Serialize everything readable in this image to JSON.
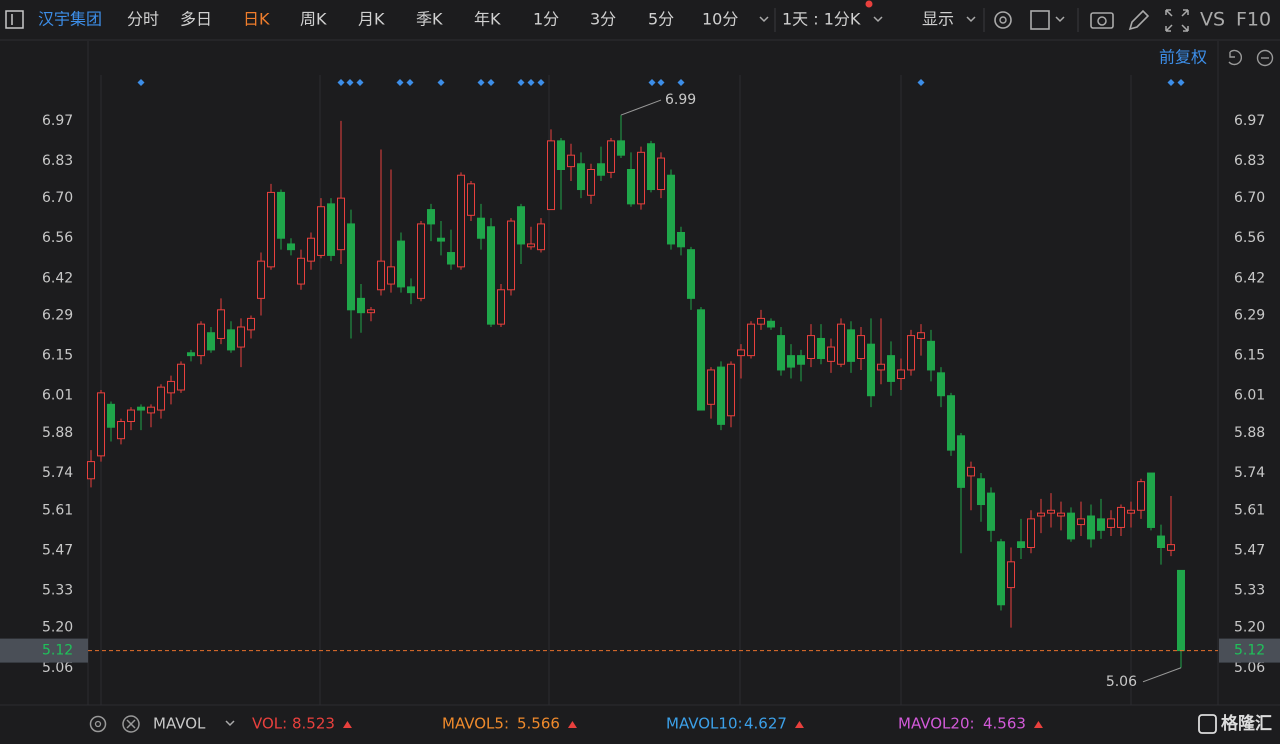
{
  "toolbar": {
    "stock_name": "汉宇集团",
    "periods": [
      "分时",
      "多日",
      "日K",
      "周K",
      "月K",
      "季K",
      "年K",
      "1分",
      "3分",
      "5分",
      "10分"
    ],
    "active_period": "日K",
    "interval": "1天 : 1分K",
    "display": "显示",
    "vs": "VS",
    "f10": "F10"
  },
  "chart_data": {
    "type": "candlestick",
    "adjust": "前复权",
    "up_color": "#e8403d",
    "down_color": "#1fa64a",
    "ylim": [
      4.93,
      7.13
    ],
    "yticks": [
      6.97,
      6.83,
      {
        "value": 6.7,
        "label": "6.70"
      },
      6.56,
      6.42,
      6.29,
      6.15,
      6.01,
      5.88,
      5.74,
      5.61,
      5.47,
      5.33,
      {
        "value": 5.2,
        "label": "5.20"
      },
      5.06
    ],
    "ohlc": [
      [
        5.72,
        5.82,
        5.69,
        5.78
      ],
      [
        5.8,
        6.03,
        5.78,
        6.02
      ],
      [
        5.98,
        5.99,
        5.85,
        5.9
      ],
      [
        5.86,
        5.93,
        5.84,
        5.92
      ],
      [
        5.92,
        5.97,
        5.89,
        5.96
      ],
      [
        5.97,
        5.98,
        5.89,
        5.96
      ],
      [
        5.95,
        5.98,
        5.9,
        5.97
      ],
      [
        5.96,
        6.05,
        5.93,
        6.04
      ],
      [
        6.02,
        6.08,
        5.98,
        6.06
      ],
      [
        6.03,
        6.13,
        6.02,
        6.12
      ],
      [
        6.16,
        6.17,
        6.13,
        6.15
      ],
      [
        6.15,
        6.27,
        6.12,
        6.26
      ],
      [
        6.23,
        6.25,
        6.16,
        6.17
      ],
      [
        6.21,
        6.35,
        6.19,
        6.31
      ],
      [
        6.24,
        6.27,
        6.16,
        6.17
      ],
      [
        6.18,
        6.28,
        6.11,
        6.25
      ],
      [
        6.24,
        6.29,
        6.21,
        6.28
      ],
      [
        6.35,
        6.51,
        6.29,
        6.48
      ],
      [
        6.46,
        6.75,
        6.45,
        6.72
      ],
      [
        6.72,
        6.73,
        6.52,
        6.56
      ],
      [
        6.54,
        6.56,
        6.5,
        6.52
      ],
      [
        6.4,
        6.52,
        6.38,
        6.49
      ],
      [
        6.48,
        6.58,
        6.45,
        6.56
      ],
      [
        6.5,
        6.7,
        6.49,
        6.67
      ],
      [
        6.68,
        6.7,
        6.48,
        6.5
      ],
      [
        6.52,
        6.97,
        6.47,
        6.7
      ],
      [
        6.61,
        6.66,
        6.21,
        6.31
      ],
      [
        6.35,
        6.4,
        6.23,
        6.3
      ],
      [
        6.3,
        6.32,
        6.27,
        6.31
      ],
      [
        6.38,
        6.87,
        6.36,
        6.48
      ],
      [
        6.4,
        6.8,
        6.37,
        6.46
      ],
      [
        6.55,
        6.58,
        6.37,
        6.39
      ],
      [
        6.39,
        6.42,
        6.33,
        6.37
      ],
      [
        6.35,
        6.62,
        6.34,
        6.61
      ],
      [
        6.66,
        6.68,
        6.55,
        6.61
      ],
      [
        6.56,
        6.62,
        6.5,
        6.55
      ],
      [
        6.51,
        6.59,
        6.45,
        6.47
      ],
      [
        6.46,
        6.79,
        6.45,
        6.78
      ],
      [
        6.64,
        6.76,
        6.62,
        6.75
      ],
      [
        6.63,
        6.68,
        6.52,
        6.56
      ],
      [
        6.6,
        6.63,
        6.25,
        6.26
      ],
      [
        6.26,
        6.4,
        6.25,
        6.38
      ],
      [
        6.38,
        6.63,
        6.36,
        6.62
      ],
      [
        6.67,
        6.68,
        6.47,
        6.54
      ],
      [
        6.53,
        6.6,
        6.52,
        6.54
      ],
      [
        6.52,
        6.63,
        6.51,
        6.61
      ],
      [
        6.66,
        6.94,
        6.66,
        6.9
      ],
      [
        6.9,
        6.91,
        6.66,
        6.8
      ],
      [
        6.81,
        6.89,
        6.76,
        6.85
      ],
      [
        6.82,
        6.86,
        6.7,
        6.73
      ],
      [
        6.71,
        6.82,
        6.68,
        6.8
      ],
      [
        6.82,
        6.88,
        6.76,
        6.78
      ],
      [
        6.79,
        6.91,
        6.77,
        6.9
      ],
      [
        6.9,
        6.99,
        6.84,
        6.85
      ],
      [
        6.8,
        6.86,
        6.67,
        6.68
      ],
      [
        6.68,
        6.88,
        6.66,
        6.86
      ],
      [
        6.89,
        6.9,
        6.72,
        6.73
      ],
      [
        6.73,
        6.86,
        6.7,
        6.84
      ],
      [
        6.78,
        6.8,
        6.52,
        6.54
      ],
      [
        6.58,
        6.6,
        6.5,
        6.53
      ],
      [
        6.52,
        6.53,
        6.31,
        6.35
      ],
      [
        6.31,
        6.32,
        5.96,
        5.96
      ],
      [
        5.98,
        6.11,
        5.93,
        6.1
      ],
      [
        6.11,
        6.13,
        5.89,
        5.91
      ],
      [
        5.94,
        6.13,
        5.9,
        6.12
      ],
      [
        6.15,
        6.19,
        6.07,
        6.17
      ],
      [
        6.15,
        6.27,
        6.14,
        6.26
      ],
      [
        6.26,
        6.31,
        6.24,
        6.28
      ],
      [
        6.27,
        6.28,
        6.24,
        6.25
      ],
      [
        6.22,
        6.25,
        6.08,
        6.1
      ],
      [
        6.15,
        6.19,
        6.07,
        6.11
      ],
      [
        6.15,
        6.17,
        6.06,
        6.12
      ],
      [
        6.14,
        6.26,
        6.11,
        6.22
      ],
      [
        6.21,
        6.26,
        6.12,
        6.14
      ],
      [
        6.13,
        6.21,
        6.09,
        6.18
      ],
      [
        6.12,
        6.28,
        6.11,
        6.26
      ],
      [
        6.24,
        6.27,
        6.09,
        6.13
      ],
      [
        6.14,
        6.25,
        6.1,
        6.22
      ],
      [
        6.19,
        6.28,
        5.97,
        6.01
      ],
      [
        6.1,
        6.28,
        6.05,
        6.12
      ],
      [
        6.15,
        6.2,
        6.01,
        6.06
      ],
      [
        6.07,
        6.14,
        6.03,
        6.1
      ],
      [
        6.1,
        6.24,
        6.08,
        6.22
      ],
      [
        6.21,
        6.26,
        6.15,
        6.23
      ],
      [
        6.2,
        6.24,
        6.06,
        6.1
      ],
      [
        6.09,
        6.11,
        5.97,
        6.01
      ],
      [
        6.01,
        6.02,
        5.8,
        5.82
      ],
      [
        5.87,
        5.88,
        5.46,
        5.69
      ],
      [
        5.73,
        5.78,
        5.61,
        5.76
      ],
      [
        5.72,
        5.74,
        5.57,
        5.63
      ],
      [
        5.67,
        5.69,
        5.5,
        5.54
      ],
      [
        5.5,
        5.51,
        5.26,
        5.28
      ],
      [
        5.34,
        5.48,
        5.2,
        5.43
      ],
      [
        5.5,
        5.58,
        5.44,
        5.48
      ],
      [
        5.48,
        5.61,
        5.46,
        5.58
      ],
      [
        5.59,
        5.65,
        5.53,
        5.6
      ],
      [
        5.6,
        5.67,
        5.55,
        5.61
      ],
      [
        5.59,
        5.64,
        5.54,
        5.6
      ],
      [
        5.6,
        5.62,
        5.5,
        5.51
      ],
      [
        5.56,
        5.64,
        5.52,
        5.58
      ],
      [
        5.59,
        5.63,
        5.48,
        5.51
      ],
      [
        5.58,
        5.65,
        5.51,
        5.54
      ],
      [
        5.55,
        5.61,
        5.52,
        5.58
      ],
      [
        5.55,
        5.63,
        5.52,
        5.62
      ],
      [
        5.6,
        5.64,
        5.55,
        5.61
      ],
      [
        5.61,
        5.72,
        5.58,
        5.71
      ],
      [
        5.74,
        5.74,
        5.54,
        5.55
      ],
      [
        5.52,
        5.56,
        5.42,
        5.48
      ],
      [
        5.47,
        5.66,
        5.45,
        5.49
      ],
      [
        5.4,
        5.4,
        5.06,
        5.12
      ]
    ]
  },
  "indicator_bar": {
    "name": "MAVOL",
    "items": [
      {
        "name": "VOL:",
        "value": 8.523,
        "color": "#e8403d"
      },
      {
        "name": "MAVOL5:",
        "value": 5.566,
        "color": "#ef8a2c"
      },
      {
        "name": "MAVOL10:",
        "value": 4.627,
        "color": "#3ca0e8"
      },
      {
        "name": "MAVOL20:",
        "value": 4.563,
        "color": "#d25ad8"
      }
    ]
  },
  "watermark": "格隆汇"
}
